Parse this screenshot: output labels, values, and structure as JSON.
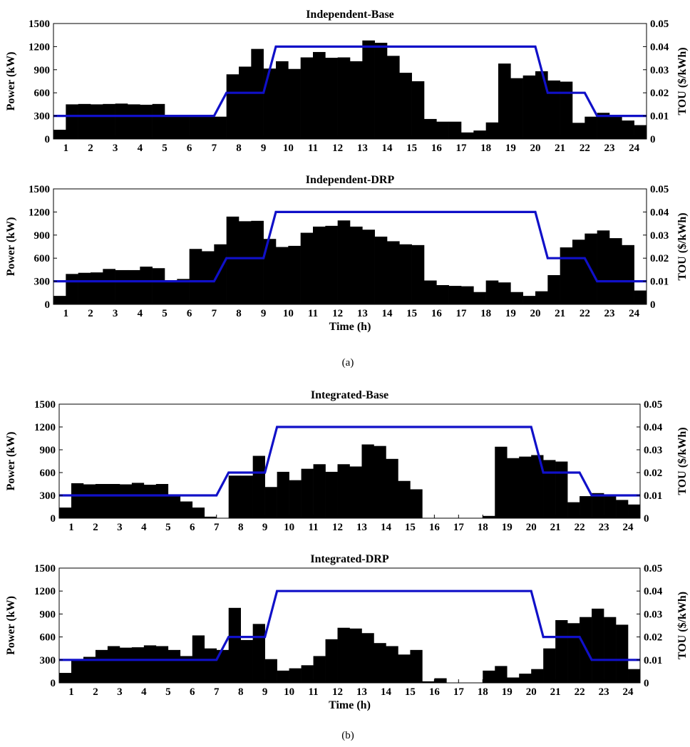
{
  "captions": [
    "(a)",
    "(b)"
  ],
  "chart_data": [
    {
      "type": "bar",
      "title": "Independent-Base",
      "ylabel": "Power (kW)",
      "y2label": "TOU ($/kWh)",
      "xlabel": "",
      "xticks": [
        "1",
        "2",
        "3",
        "4",
        "5",
        "6",
        "7",
        "8",
        "9",
        "10",
        "11",
        "12",
        "13",
        "14",
        "15",
        "16",
        "17",
        "18",
        "19",
        "20",
        "21",
        "22",
        "23",
        "24"
      ],
      "xlim": [
        0.5,
        24.5
      ],
      "ylim": [
        0,
        1500
      ],
      "yticks": [
        "0",
        "300",
        "600",
        "900",
        "1200",
        "1500"
      ],
      "y2lim": [
        0,
        0.05
      ],
      "y2ticks": [
        "0",
        "0.01",
        "0.02",
        "0.03",
        "0.04",
        "0.05"
      ],
      "bar_width": 0.5,
      "bars": {
        "x": [
          0.75,
          1.25,
          1.75,
          2.25,
          2.75,
          3.25,
          3.75,
          4.25,
          4.75,
          5.25,
          5.75,
          6.25,
          6.75,
          7.25,
          7.75,
          8.25,
          8.75,
          9.25,
          9.75,
          10.25,
          10.75,
          11.25,
          11.75,
          12.25,
          12.75,
          13.25,
          13.75,
          14.25,
          14.75,
          15.25,
          15.75,
          16.25,
          16.75,
          17.25,
          17.75,
          18.25,
          18.75,
          19.25,
          19.75,
          20.25,
          20.75,
          21.25,
          21.75,
          22.25,
          22.75,
          23.25,
          23.75,
          24.25
        ],
        "values": [
          120,
          450,
          455,
          450,
          455,
          460,
          450,
          445,
          455,
          290,
          295,
          295,
          295,
          290,
          840,
          940,
          1170,
          915,
          1010,
          910,
          1060,
          1130,
          1055,
          1060,
          1010,
          1280,
          1250,
          1080,
          860,
          750,
          260,
          225,
          225,
          85,
          110,
          215,
          980,
          790,
          825,
          880,
          760,
          745,
          210,
          290,
          340,
          290,
          240,
          180
        ]
      },
      "tou": {
        "name": "TOU",
        "x": [
          0.5,
          7,
          7.5,
          9,
          9.5,
          20,
          20.5,
          22,
          22.5,
          24.5
        ],
        "values": [
          0.01,
          0.01,
          0.02,
          0.02,
          0.04,
          0.04,
          0.02,
          0.02,
          0.01,
          0.01
        ]
      }
    },
    {
      "type": "bar",
      "title": "Independent-DRP",
      "ylabel": "Power (kW)",
      "y2label": "TOU ($/kWh)",
      "xlabel": "Time (h)",
      "xticks": [
        "1",
        "2",
        "3",
        "4",
        "5",
        "6",
        "7",
        "8",
        "9",
        "10",
        "11",
        "12",
        "13",
        "14",
        "15",
        "16",
        "17",
        "18",
        "19",
        "20",
        "21",
        "22",
        "23",
        "24"
      ],
      "xlim": [
        0.5,
        24.5
      ],
      "ylim": [
        0,
        1500
      ],
      "yticks": [
        "0",
        "300",
        "600",
        "900",
        "1200",
        "1500"
      ],
      "y2lim": [
        0,
        0.05
      ],
      "y2ticks": [
        "0",
        "0.01",
        "0.02",
        "0.03",
        "0.04",
        "0.05"
      ],
      "bar_width": 0.5,
      "bars": {
        "x": [
          0.75,
          1.25,
          1.75,
          2.25,
          2.75,
          3.25,
          3.75,
          4.25,
          4.75,
          5.25,
          5.75,
          6.25,
          6.75,
          7.25,
          7.75,
          8.25,
          8.75,
          9.25,
          9.75,
          10.25,
          10.75,
          11.25,
          11.75,
          12.25,
          12.75,
          13.25,
          13.75,
          14.25,
          14.75,
          15.25,
          15.75,
          16.25,
          16.75,
          17.25,
          17.75,
          18.25,
          18.75,
          19.25,
          19.75,
          20.25,
          20.75,
          21.25,
          21.75,
          22.25,
          22.75,
          23.25,
          23.75,
          24.25
        ],
        "values": [
          110,
          395,
          410,
          415,
          460,
          445,
          445,
          490,
          470,
          310,
          330,
          720,
          690,
          780,
          1140,
          1080,
          1085,
          850,
          745,
          760,
          930,
          1010,
          1020,
          1090,
          1010,
          970,
          880,
          820,
          780,
          770,
          310,
          250,
          240,
          235,
          160,
          310,
          285,
          160,
          110,
          170,
          380,
          740,
          840,
          920,
          960,
          860,
          770,
          180
        ]
      },
      "tou": {
        "name": "TOU",
        "x": [
          0.5,
          7,
          7.5,
          9,
          9.5,
          20,
          20.5,
          22,
          22.5,
          24.5
        ],
        "values": [
          0.01,
          0.01,
          0.02,
          0.02,
          0.04,
          0.04,
          0.02,
          0.02,
          0.01,
          0.01
        ]
      }
    },
    {
      "type": "bar",
      "title": "Integrated-Base",
      "ylabel": "Power (kW)",
      "y2label": "TOU ($/kWh)",
      "xlabel": "",
      "xticks": [
        "1",
        "2",
        "3",
        "4",
        "5",
        "6",
        "7",
        "8",
        "9",
        "10",
        "11",
        "12",
        "13",
        "14",
        "15",
        "16",
        "17",
        "18",
        "19",
        "20",
        "21",
        "22",
        "23",
        "24"
      ],
      "xlim": [
        0.5,
        24.5
      ],
      "ylim": [
        0,
        1500
      ],
      "yticks": [
        "0",
        "300",
        "600",
        "900",
        "1200",
        "1500"
      ],
      "y2lim": [
        0,
        0.05
      ],
      "y2ticks": [
        "0",
        "0.01",
        "0.02",
        "0.03",
        "0.04",
        "0.05"
      ],
      "bar_width": 0.5,
      "bars": {
        "x": [
          0.75,
          1.25,
          1.75,
          2.25,
          2.75,
          3.25,
          3.75,
          4.25,
          4.75,
          5.25,
          5.75,
          6.25,
          6.75,
          7.25,
          7.75,
          8.25,
          8.75,
          9.25,
          9.75,
          10.25,
          10.75,
          11.25,
          11.75,
          12.25,
          12.75,
          13.25,
          13.75,
          14.25,
          14.75,
          15.25,
          15.75,
          16.25,
          16.75,
          17.25,
          17.75,
          18.25,
          18.75,
          19.25,
          19.75,
          20.25,
          20.75,
          21.25,
          21.75,
          22.25,
          22.75,
          23.25,
          23.75,
          24.25
        ],
        "values": [
          140,
          460,
          445,
          450,
          450,
          445,
          465,
          440,
          450,
          300,
          220,
          140,
          20,
          0,
          560,
          560,
          820,
          410,
          610,
          500,
          650,
          710,
          610,
          710,
          680,
          970,
          950,
          780,
          490,
          380,
          0,
          0,
          0,
          0,
          0,
          30,
          940,
          790,
          810,
          830,
          765,
          745,
          210,
          290,
          330,
          290,
          240,
          180
        ]
      },
      "tou": {
        "name": "TOU",
        "x": [
          0.5,
          7,
          7.5,
          9,
          9.5,
          20,
          20.5,
          22,
          22.5,
          24.5
        ],
        "values": [
          0.01,
          0.01,
          0.02,
          0.02,
          0.04,
          0.04,
          0.02,
          0.02,
          0.01,
          0.01
        ]
      }
    },
    {
      "type": "bar",
      "title": "Integrated-DRP",
      "ylabel": "Power (kW)",
      "y2label": "TOU ($/kWh)",
      "xlabel": "Time (h)",
      "xticks": [
        "1",
        "2",
        "3",
        "4",
        "5",
        "6",
        "7",
        "8",
        "9",
        "10",
        "11",
        "12",
        "13",
        "14",
        "15",
        "16",
        "17",
        "18",
        "19",
        "20",
        "21",
        "22",
        "23",
        "24"
      ],
      "xlim": [
        0.5,
        24.5
      ],
      "ylim": [
        0,
        1500
      ],
      "yticks": [
        "0",
        "300",
        "600",
        "900",
        "1200",
        "1500"
      ],
      "y2lim": [
        0,
        0.05
      ],
      "y2ticks": [
        "0",
        "0.01",
        "0.02",
        "0.03",
        "0.04",
        "0.05"
      ],
      "bar_width": 0.5,
      "bars": {
        "x": [
          0.75,
          1.25,
          1.75,
          2.25,
          2.75,
          3.25,
          3.75,
          4.25,
          4.75,
          5.25,
          5.75,
          6.25,
          6.75,
          7.25,
          7.75,
          8.25,
          8.75,
          9.25,
          9.75,
          10.25,
          10.75,
          11.25,
          11.75,
          12.25,
          12.75,
          13.25,
          13.75,
          14.25,
          14.75,
          15.25,
          15.75,
          16.25,
          16.75,
          17.25,
          17.75,
          18.25,
          18.75,
          19.25,
          19.75,
          20.25,
          20.75,
          21.25,
          21.75,
          22.25,
          22.75,
          23.25,
          23.75,
          24.25
        ],
        "values": [
          130,
          300,
          340,
          430,
          480,
          460,
          465,
          490,
          480,
          430,
          350,
          620,
          450,
          430,
          980,
          560,
          770,
          310,
          160,
          190,
          230,
          350,
          570,
          720,
          710,
          650,
          520,
          480,
          370,
          430,
          20,
          60,
          0,
          0,
          0,
          160,
          220,
          70,
          120,
          180,
          450,
          820,
          780,
          860,
          970,
          860,
          760,
          180
        ]
      },
      "tou": {
        "name": "TOU",
        "x": [
          0.5,
          7,
          7.5,
          9,
          9.5,
          20,
          20.5,
          22,
          22.5,
          24.5
        ],
        "values": [
          0.01,
          0.01,
          0.02,
          0.02,
          0.04,
          0.04,
          0.02,
          0.02,
          0.01,
          0.01
        ]
      }
    }
  ]
}
